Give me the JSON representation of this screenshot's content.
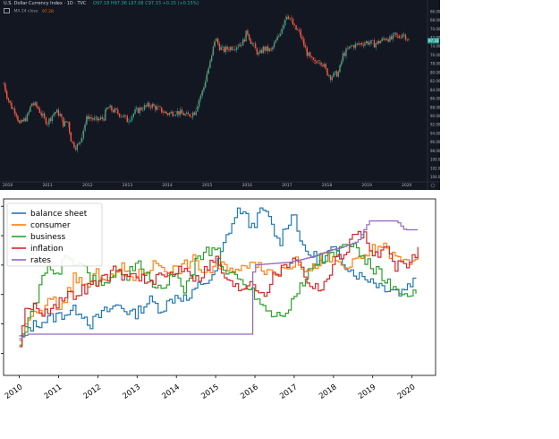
{
  "top_chart": {
    "symbol": "U.S. Dollar Currency Index · 1D · TVC",
    "ohlc": "O97.18 H97.36 L97.08 C97.33 +0.15 (+0.15%)",
    "indicator_label": "MA 24 close",
    "indicator_value": "97.28",
    "price_badge": "97.33",
    "x_ticks": [
      "2010",
      "2011",
      "2012",
      "2013",
      "2014",
      "2015",
      "2016",
      "2017",
      "2018",
      "2019",
      "2020"
    ],
    "y_ticks": [
      "104.00",
      "102.00",
      "100.00",
      "98.00",
      "96.00",
      "94.00",
      "92.00",
      "90.00",
      "88.00",
      "86.00",
      "84.00",
      "82.00",
      "80.00",
      "78.00",
      "76.00",
      "74.00",
      "72.00",
      "70.00",
      "68.00",
      "66.00"
    ],
    "colors": {
      "background": "#131722",
      "up": "#26a69a",
      "down": "#ef5350",
      "ma": "#ef6c00",
      "text": "#b2b5be"
    }
  },
  "chart_data": [
    {
      "type": "line",
      "title": "U.S. Dollar Currency Index",
      "xlim": [
        2009.85,
        2020.5
      ],
      "ylim": [
        65.5,
        105
      ],
      "y_ticks": [
        66,
        68,
        70,
        72,
        74,
        76,
        78,
        80,
        82,
        84,
        86,
        88,
        90,
        92,
        94,
        96,
        98,
        100,
        102,
        104
      ],
      "x": [
        2009.9,
        2010.0,
        2010.1,
        2010.2,
        2010.3,
        2010.4,
        2010.5,
        2010.6,
        2010.75,
        2010.9,
        2011.0,
        2011.1,
        2011.2,
        2011.3,
        2011.4,
        2011.5,
        2011.6,
        2011.7,
        2011.8,
        2011.9,
        2012.0,
        2012.2,
        2012.4,
        2012.5,
        2012.7,
        2012.9,
        2013.0,
        2013.2,
        2013.4,
        2013.6,
        2013.8,
        2014.0,
        2014.2,
        2014.4,
        2014.5,
        2014.6,
        2014.7,
        2014.8,
        2014.9,
        2015.0,
        2015.1,
        2015.2,
        2015.3,
        2015.4,
        2015.5,
        2015.7,
        2015.9,
        2016.0,
        2016.1,
        2016.2,
        2016.3,
        2016.4,
        2016.6,
        2016.8,
        2016.9,
        2017.0,
        2017.1,
        2017.2,
        2017.3,
        2017.4,
        2017.5,
        2017.6,
        2017.7,
        2017.8,
        2017.9,
        2018.0,
        2018.1,
        2018.2,
        2018.3,
        2018.4,
        2018.5,
        2018.6,
        2018.8,
        2019.0,
        2019.2,
        2019.4,
        2019.5,
        2019.6,
        2019.7,
        2019.8,
        2019.9,
        2020.0,
        2020.05
      ],
      "series": [
        {
          "values": [
            87.5,
            84,
            82,
            81,
            78,
            79,
            80,
            83,
            82,
            79.5,
            78.5,
            80,
            81,
            80.5,
            78,
            79,
            74,
            73,
            73.5,
            77,
            80,
            79,
            79.5,
            82,
            81,
            80,
            79,
            81,
            82,
            82.5,
            81.5,
            80.5,
            81,
            80.5,
            80,
            80.5,
            81,
            84,
            86,
            90,
            93,
            98,
            96,
            95,
            95.5,
            96,
            97,
            99.5,
            97,
            95.5,
            94,
            95.5,
            95,
            98.5,
            101,
            103.5,
            102,
            100,
            99.5,
            97,
            94.5,
            93,
            92,
            93,
            92,
            90,
            89,
            89.5,
            90,
            94,
            95,
            96,
            96.5,
            97,
            96.5,
            97.5,
            98,
            97.5,
            98.5,
            98,
            99,
            98,
            97.3
          ]
        }
      ]
    },
    {
      "type": "line",
      "title": "",
      "xlim": [
        2009.6,
        2020.6
      ],
      "ylim": [
        -0.15,
        1.05
      ],
      "x_ticks": [
        "2010",
        "2011",
        "2012",
        "2013",
        "2014",
        "2015",
        "2016",
        "2017",
        "2018",
        "2019",
        "2020"
      ],
      "y_ticks": [
        0,
        0.2,
        0.4,
        0.6,
        0.8,
        1.0
      ],
      "y_tick_labels": [
        "",
        "",
        "",
        "",
        "",
        ""
      ],
      "legend_position": "upper left",
      "series": [
        {
          "name": "balance sheet",
          "color": "#1f77b4",
          "x": [
            2010.0,
            2010.2,
            2010.5,
            2011.0,
            2011.5,
            2011.8,
            2012.1,
            2012.5,
            2012.9,
            2013.3,
            2013.6,
            2014.0,
            2014.3,
            2014.6,
            2014.9,
            2015.0,
            2015.3,
            2015.6,
            2015.9,
            2016.2,
            2016.4,
            2016.6,
            2016.8,
            2017.0,
            2017.2,
            2017.5,
            2017.7,
            2017.9,
            2018.1,
            2018.4,
            2018.7,
            2018.9,
            2019.2,
            2019.5,
            2019.7,
            2019.9,
            2020.1
          ],
          "values": [
            0.1,
            0.17,
            0.21,
            0.26,
            0.3,
            0.2,
            0.27,
            0.33,
            0.26,
            0.36,
            0.3,
            0.4,
            0.36,
            0.48,
            0.5,
            0.58,
            0.82,
            0.99,
            0.86,
            0.98,
            0.88,
            0.74,
            0.89,
            0.95,
            0.7,
            0.66,
            0.6,
            0.7,
            0.68,
            0.57,
            0.52,
            0.51,
            0.46,
            0.44,
            0.41,
            0.48,
            0.5
          ]
        },
        {
          "name": "consumer",
          "color": "#ff7f0e",
          "x": [
            2010.0,
            2010.2,
            2010.4,
            2010.6,
            2010.8,
            2011.0,
            2011.2,
            2011.4,
            2011.7,
            2012.0,
            2012.3,
            2012.6,
            2012.9,
            2013.2,
            2013.5,
            2013.8,
            2014.1,
            2014.4,
            2014.7,
            2015.0,
            2015.3,
            2015.6,
            2015.9,
            2016.2,
            2016.5,
            2016.8,
            2017.1,
            2017.4,
            2017.7,
            2018.0,
            2018.3,
            2018.6,
            2018.9,
            2019.2,
            2019.5,
            2019.8,
            2020.0,
            2020.15
          ],
          "values": [
            0.05,
            0.25,
            0.26,
            0.28,
            0.38,
            0.3,
            0.4,
            0.52,
            0.45,
            0.55,
            0.5,
            0.58,
            0.52,
            0.56,
            0.62,
            0.56,
            0.58,
            0.64,
            0.55,
            0.58,
            0.6,
            0.55,
            0.65,
            0.58,
            0.54,
            0.6,
            0.62,
            0.55,
            0.66,
            0.63,
            0.58,
            0.62,
            0.69,
            0.74,
            0.66,
            0.62,
            0.64,
            0.68
          ]
        },
        {
          "name": "business",
          "color": "#2ca02c",
          "x": [
            2010.0,
            2010.2,
            2010.4,
            2010.6,
            2010.9,
            2011.2,
            2011.5,
            2011.8,
            2012.1,
            2012.4,
            2012.7,
            2013.0,
            2013.3,
            2013.6,
            2013.9,
            2014.2,
            2014.5,
            2014.8,
            2015.0,
            2015.2,
            2015.5,
            2015.8,
            2016.0,
            2016.2,
            2016.5,
            2016.8,
            2017.0,
            2017.3,
            2017.6,
            2017.9,
            2018.2,
            2018.5,
            2018.8,
            2019.1,
            2019.4,
            2019.7,
            2019.9,
            2020.1
          ],
          "values": [
            0.08,
            0.2,
            0.34,
            0.58,
            0.52,
            0.66,
            0.62,
            0.52,
            0.46,
            0.56,
            0.52,
            0.6,
            0.5,
            0.44,
            0.52,
            0.44,
            0.64,
            0.7,
            0.72,
            0.56,
            0.52,
            0.46,
            0.4,
            0.32,
            0.26,
            0.3,
            0.38,
            0.52,
            0.64,
            0.66,
            0.71,
            0.74,
            0.62,
            0.56,
            0.46,
            0.38,
            0.36,
            0.44
          ]
        },
        {
          "name": "inflation",
          "color": "#d62728",
          "x": [
            2010.0,
            2010.1,
            2010.3,
            2010.6,
            2010.9,
            2011.2,
            2011.5,
            2011.8,
            2012.1,
            2012.4,
            2012.7,
            2013.0,
            2013.3,
            2013.6,
            2013.9,
            2014.2,
            2014.5,
            2014.8,
            2015.0,
            2015.3,
            2015.6,
            2015.9,
            2016.2,
            2016.5,
            2016.8,
            2017.0,
            2017.3,
            2017.6,
            2017.9,
            2018.1,
            2018.3,
            2018.6,
            2018.8,
            2019.0,
            2019.3,
            2019.5,
            2019.8,
            2020.0,
            2020.15
          ],
          "values": [
            0.05,
            0.26,
            0.33,
            0.28,
            0.34,
            0.38,
            0.42,
            0.46,
            0.5,
            0.56,
            0.52,
            0.54,
            0.46,
            0.52,
            0.55,
            0.6,
            0.5,
            0.6,
            0.64,
            0.48,
            0.44,
            0.5,
            0.4,
            0.54,
            0.6,
            0.68,
            0.5,
            0.44,
            0.54,
            0.66,
            0.7,
            0.84,
            0.8,
            0.64,
            0.72,
            0.6,
            0.58,
            0.64,
            0.7
          ]
        },
        {
          "name": "rates",
          "color": "#9467bd",
          "x": [
            2010.0,
            2010.2,
            2015.9,
            2015.95,
            2016.9,
            2017.2,
            2017.5,
            2017.9,
            2018.2,
            2018.6,
            2018.9,
            2019.6,
            2019.8,
            2020.15
          ],
          "values": [
            0.1,
            0.13,
            0.13,
            0.6,
            0.62,
            0.64,
            0.66,
            0.7,
            0.72,
            0.76,
            0.9,
            0.9,
            0.84,
            0.84
          ]
        }
      ]
    }
  ]
}
